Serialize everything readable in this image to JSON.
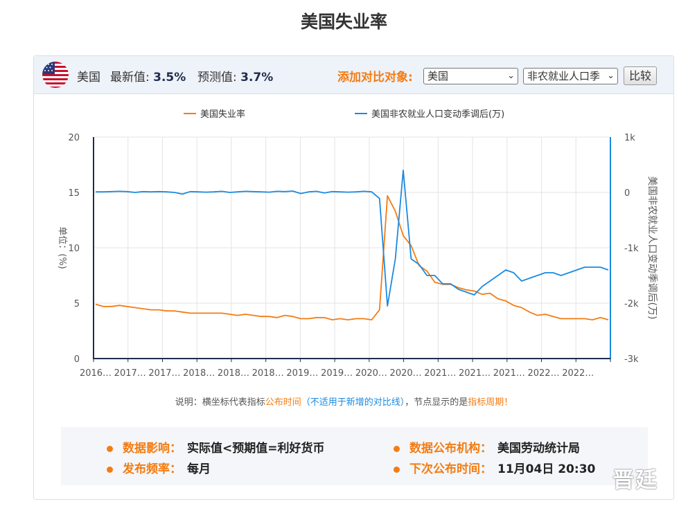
{
  "page_title": "美国失业率",
  "header": {
    "country": "美国",
    "latest_label": "最新值:",
    "latest_value": "3.5%",
    "forecast_label": "预测值:",
    "forecast_value": "3.7%",
    "add_compare_label": "添加对比对象:",
    "country_select_value": "美国",
    "indicator_select_value": "非农就业人口季",
    "compare_button": "比较"
  },
  "note": {
    "prefix": "说明：横坐标代表指标",
    "publish_time": "公布时间",
    "paren": "（不适用于新增的对比线）",
    "middle": "，节点显示的是",
    "period": "指标周期",
    "end": "！"
  },
  "info": {
    "impact_key": "数据影响：",
    "impact_value": "实际值<预期值=利好货币",
    "org_key": "数据公布机构：",
    "org_value": "美国劳动统计局",
    "freq_key": "发布频率：",
    "freq_value": "每月",
    "next_key": "下次公布时间：",
    "next_value": "11月04日 20:30"
  },
  "watermark": "晋廷",
  "colors": {
    "unemployment": "#f47c11",
    "payrolls": "#1a8ae0",
    "accent": "#f47c11"
  },
  "chart_data": {
    "type": "line",
    "x_tick_labels": [
      "2016…",
      "2017…",
      "2017…",
      "2018…",
      "2018…",
      "2018…",
      "2019…",
      "2019…",
      "2020…",
      "2020…",
      "2021…",
      "2021…",
      "2021…",
      "2022…",
      "2022…"
    ],
    "legend": [
      "美国失业率",
      "美国非农就业人口变动季调后(万)"
    ],
    "left_axis": {
      "label": "单位：(%)",
      "min": 0,
      "max": 20,
      "ticks": [
        "0",
        "5",
        "10",
        "15",
        "20"
      ]
    },
    "right_axis": {
      "label": "美国非农就业人口变动季调后(万)",
      "min": -3000,
      "max": 1000,
      "ticks": [
        "-3k",
        "-2k",
        "-1k",
        "0",
        "1k"
      ]
    },
    "grid": true,
    "legend_position": "top",
    "series": [
      {
        "name": "美国失业率",
        "axis": "left",
        "values": [
          4.9,
          4.7,
          4.7,
          4.8,
          4.7,
          4.6,
          4.5,
          4.4,
          4.4,
          4.3,
          4.3,
          4.2,
          4.1,
          4.1,
          4.1,
          4.1,
          4.1,
          4.0,
          3.9,
          4.0,
          3.9,
          3.8,
          3.8,
          3.7,
          3.9,
          3.8,
          3.6,
          3.6,
          3.7,
          3.7,
          3.5,
          3.6,
          3.5,
          3.6,
          3.6,
          3.5,
          4.4,
          14.7,
          13.3,
          11.1,
          10.2,
          8.4,
          7.9,
          6.9,
          6.7,
          6.7,
          6.4,
          6.2,
          6.1,
          5.8,
          5.9,
          5.4,
          5.2,
          4.8,
          4.6,
          4.2,
          3.9,
          4.0,
          3.8,
          3.6,
          3.6,
          3.6,
          3.6,
          3.5,
          3.7,
          3.5
        ]
      },
      {
        "name": "美国非农就业人口变动季调后(万)",
        "axis": "right",
        "values": [
          10,
          10,
          15,
          20,
          15,
          0,
          15,
          10,
          15,
          10,
          0,
          -30,
          15,
          10,
          5,
          10,
          20,
          0,
          10,
          20,
          15,
          10,
          5,
          20,
          15,
          25,
          -20,
          10,
          20,
          -10,
          15,
          10,
          5,
          10,
          20,
          10,
          -110,
          -2050,
          -1200,
          400,
          -1200,
          -1300,
          -1500,
          -1500,
          -1650,
          -1650,
          -1750,
          -1800,
          -1850,
          -1700,
          -1600,
          -1500,
          -1400,
          -1450,
          -1600,
          -1550,
          -1500,
          -1450,
          -1450,
          -1500,
          -1450,
          -1400,
          -1350,
          -1350,
          -1350,
          -1400
        ]
      }
    ]
  }
}
